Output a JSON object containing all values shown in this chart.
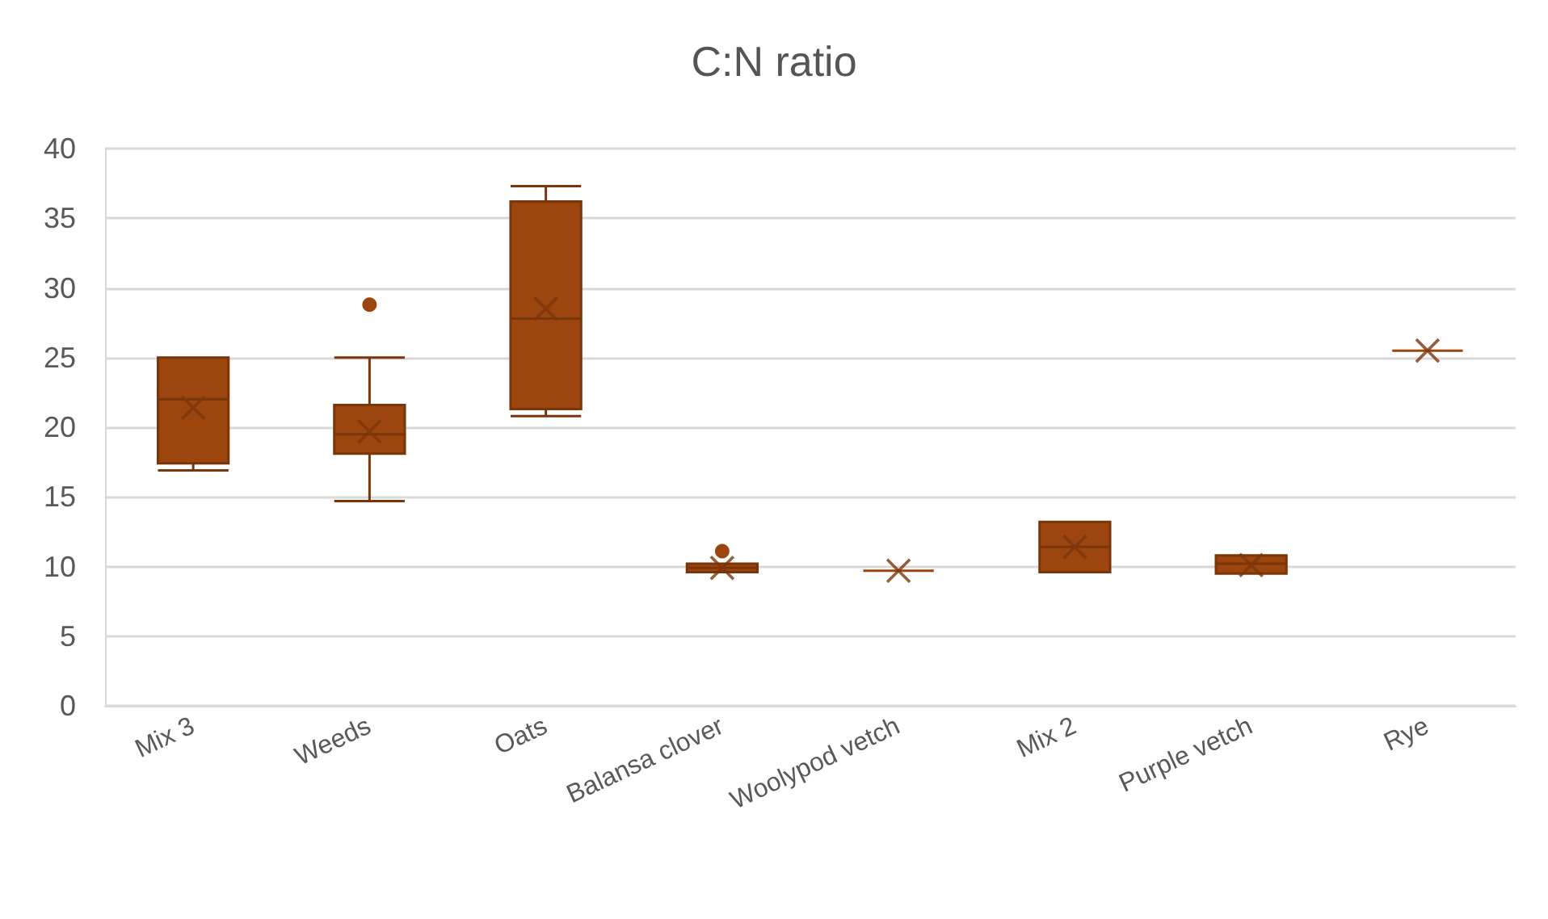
{
  "chart_data": {
    "type": "box",
    "title": "C:N ratio",
    "categories": [
      "Mix 3",
      "Weeds",
      "Oats",
      "Balansa clover",
      "Woolypod vetch",
      "Mix 2",
      "Purple vetch",
      "Rye"
    ],
    "color": "#9c450e",
    "boxes": [
      {
        "low": 16.9,
        "q1": 17.4,
        "median": 22,
        "q3": 25,
        "high": 25,
        "mean": 21.4
      },
      {
        "low": 14.7,
        "q1": 18.1,
        "median": 19.5,
        "q3": 21.6,
        "high": 25,
        "mean": 19.7,
        "outliers": [
          28.8
        ]
      },
      {
        "low": 20.8,
        "q1": 21.3,
        "median": 27.8,
        "q3": 36.2,
        "high": 37.3,
        "mean": 28.5
      },
      {
        "low": 9.6,
        "q1": 9.6,
        "median": 9.9,
        "q3": 10.2,
        "high": 10.2,
        "mean": 9.9,
        "outliers": [
          11.1
        ]
      },
      {
        "low": 9.7,
        "q1": 9.7,
        "median": 9.7,
        "q3": 9.7,
        "high": 9.7,
        "mean": 9.7
      },
      {
        "low": 9.6,
        "q1": 9.6,
        "median": 11.4,
        "q3": 13.2,
        "high": 13.2,
        "mean": 11.4
      },
      {
        "low": 9.5,
        "q1": 9.5,
        "median": 10.2,
        "q3": 10.8,
        "high": 10.8,
        "mean": 10.1
      },
      {
        "low": 25.5,
        "q1": 25.5,
        "median": 25.5,
        "q3": 25.5,
        "high": 25.5,
        "mean": 25.5
      }
    ],
    "ylim": [
      0,
      40
    ],
    "yticks": [
      0,
      5,
      10,
      15,
      20,
      25,
      30,
      35,
      40
    ],
    "grid": "y"
  }
}
